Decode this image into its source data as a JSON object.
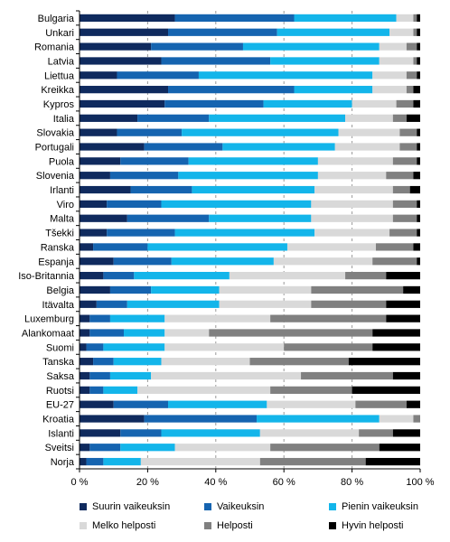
{
  "chart_data": {
    "type": "bar",
    "orientation": "horizontal",
    "stacked": true,
    "title": "",
    "xlabel": "",
    "ylabel": "",
    "xlim": [
      0,
      100
    ],
    "x_ticks": [
      "0 %",
      "20 %",
      "40 %",
      "60 %",
      "80 %",
      "100 %"
    ],
    "grid": "vertical dashed",
    "legend_position": "bottom",
    "categories": [
      "Bulgaria",
      "Unkari",
      "Romania",
      "Latvia",
      "Liettua",
      "Kreikka",
      "Kypros",
      "Italia",
      "Slovakia",
      "Portugali",
      "Puola",
      "Slovenia",
      "Irlanti",
      "Viro",
      "Malta",
      "Tšekki",
      "Ranska",
      "Espanja",
      "Iso-Britannia",
      "Belgia",
      "Itävalta",
      "Luxemburg",
      "Alankomaat",
      "Suomi",
      "Tanska",
      "Saksa",
      "Ruotsi",
      "EU-27",
      "Kroatia",
      "Islanti",
      "Sveitsi",
      "Norja"
    ],
    "series": [
      {
        "name": "Suurin vaikeuksin",
        "color": "#0f2a5e",
        "values": [
          28,
          26,
          21,
          24,
          11,
          26,
          25,
          17,
          11,
          19,
          12,
          9,
          15,
          8,
          14,
          8,
          4,
          10,
          7,
          9,
          5,
          3,
          3,
          2,
          4,
          3,
          3,
          10,
          19,
          12,
          3,
          2
        ]
      },
      {
        "name": "Vaikeuksin",
        "color": "#1564b0",
        "values": [
          35,
          32,
          27,
          32,
          24,
          37,
          29,
          21,
          19,
          23,
          20,
          20,
          18,
          16,
          24,
          20,
          16,
          17,
          9,
          12,
          9,
          6,
          10,
          5,
          6,
          6,
          4,
          16,
          33,
          12,
          9,
          5
        ]
      },
      {
        "name": "Pienin vaikeuksin",
        "color": "#13b5ea",
        "values": [
          30,
          33,
          40,
          32,
          51,
          23,
          26,
          40,
          46,
          33,
          38,
          41,
          36,
          44,
          30,
          41,
          41,
          30,
          28,
          20,
          27,
          16,
          12,
          18,
          14,
          12,
          10,
          29,
          36,
          29,
          16,
          11
        ]
      },
      {
        "name": "Melko helposti",
        "color": "#d9d9d9",
        "values": [
          5,
          7,
          8,
          10,
          10,
          10,
          13,
          14,
          18,
          19,
          22,
          20,
          23,
          24,
          24,
          22,
          26,
          29,
          34,
          27,
          27,
          31,
          13,
          35,
          26,
          44,
          39,
          26,
          10,
          29,
          28,
          35
        ]
      },
      {
        "name": "Helposti",
        "color": "#808080",
        "values": [
          1,
          1,
          3,
          1,
          3,
          2,
          5,
          4,
          5,
          5,
          7,
          8,
          5,
          7,
          7,
          8,
          11,
          13,
          12,
          27,
          22,
          34,
          48,
          26,
          29,
          27,
          24,
          15,
          2,
          10,
          32,
          31
        ]
      },
      {
        "name": "Hyvin helposti",
        "color": "#000000",
        "values": [
          1,
          1,
          1,
          1,
          1,
          2,
          2,
          4,
          1,
          1,
          1,
          2,
          3,
          1,
          1,
          1,
          2,
          1,
          10,
          5,
          10,
          10,
          14,
          14,
          21,
          8,
          20,
          4,
          0,
          8,
          12,
          16
        ]
      }
    ]
  }
}
